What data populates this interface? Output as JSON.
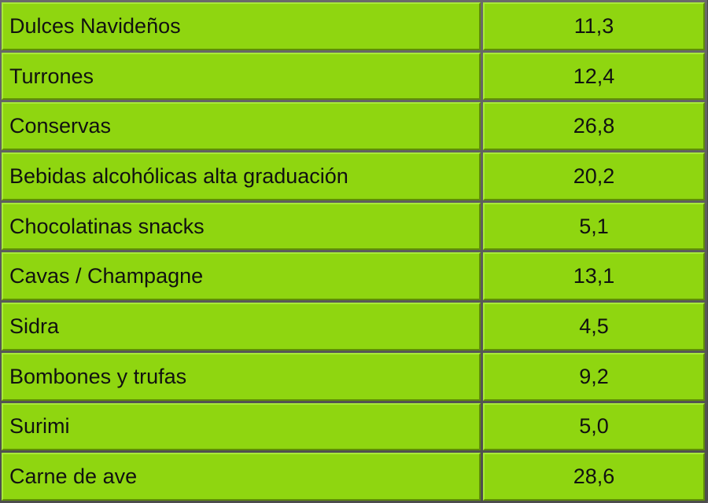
{
  "chart_data": {
    "type": "table",
    "rows": [
      {
        "label": "Dulces Navideños",
        "value": "11,3"
      },
      {
        "label": "Turrones",
        "value": "12,4"
      },
      {
        "label": "Conservas",
        "value": "26,8"
      },
      {
        "label": "Bebidas alcohólicas alta graduación",
        "value": "20,2"
      },
      {
        "label": "Chocolatinas snacks",
        "value": "5,1"
      },
      {
        "label": "Cavas / Champagne",
        "value": "13,1"
      },
      {
        "label": "Sidra",
        "value": "4,5"
      },
      {
        "label": "Bombones y trufas",
        "value": "9,2"
      },
      {
        "label": "Surimi",
        "value": "5,0"
      },
      {
        "label": "Carne de ave",
        "value": "28,6"
      }
    ]
  },
  "colors": {
    "cell_background": "#8fd610",
    "border": "#4b4b4b",
    "text": "#111111"
  }
}
